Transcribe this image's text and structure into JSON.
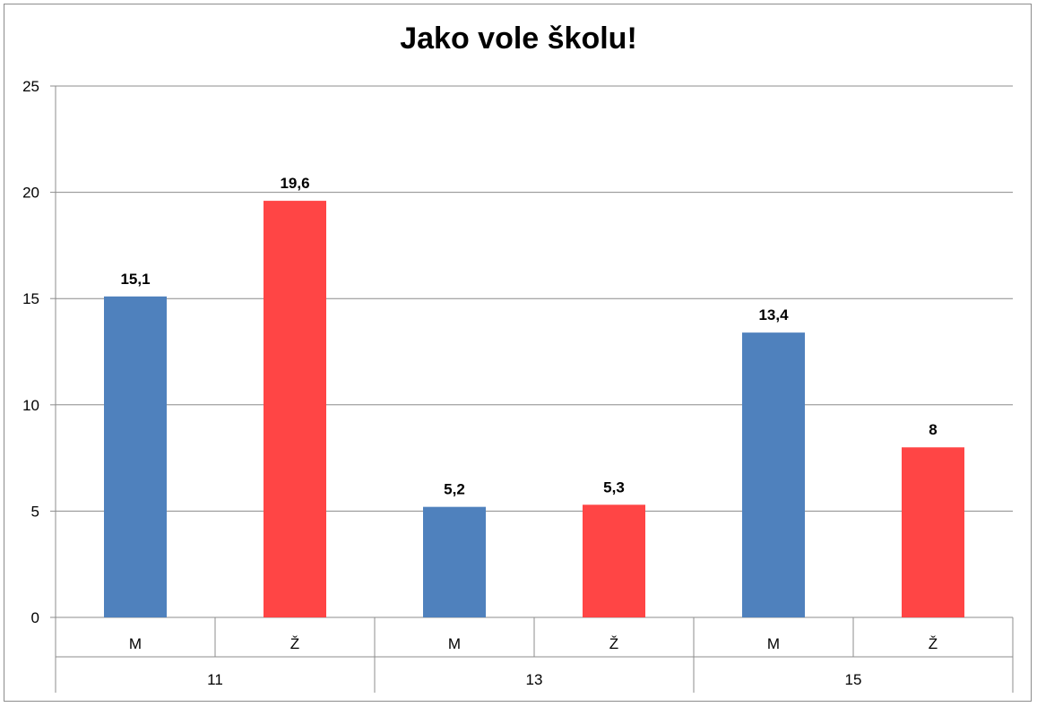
{
  "chart_data": {
    "type": "bar",
    "title": "Jako vole školu!",
    "xlabel": "",
    "ylabel": "",
    "ylim": [
      0,
      25
    ],
    "yticks": [
      0,
      5,
      10,
      15,
      20,
      25
    ],
    "grid": true,
    "legend": "none",
    "groups": [
      "11",
      "13",
      "15"
    ],
    "categories": [
      "M",
      "Ž"
    ],
    "bars": [
      {
        "group": "11",
        "category": "M",
        "value": 15.1,
        "label": "15,1",
        "color": "#4f81bd"
      },
      {
        "group": "11",
        "category": "Ž",
        "value": 19.6,
        "label": "19,6",
        "color": "#ff4545"
      },
      {
        "group": "13",
        "category": "M",
        "value": 5.2,
        "label": "5,2",
        "color": "#4f81bd"
      },
      {
        "group": "13",
        "category": "Ž",
        "value": 5.3,
        "label": "5,3",
        "color": "#ff4545"
      },
      {
        "group": "15",
        "category": "M",
        "value": 13.4,
        "label": "13,4",
        "color": "#4f81bd"
      },
      {
        "group": "15",
        "category": "Ž",
        "value": 8,
        "label": "8",
        "color": "#ff4545"
      }
    ]
  }
}
